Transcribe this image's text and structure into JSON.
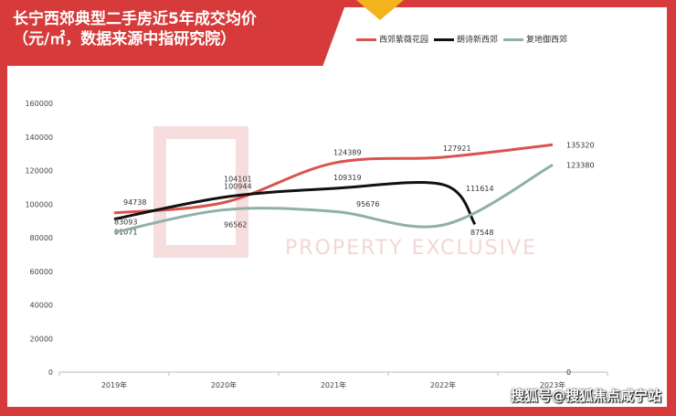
{
  "chart_data": {
    "type": "line",
    "title": [
      "长宁西郊典型二手房近5年成交均价",
      "（元/㎡，数据来源中指研究院）"
    ],
    "categories": [
      "2019年",
      "2020年",
      "2021年",
      "2022年",
      "2023年"
    ],
    "ylim": [
      0,
      160000
    ],
    "yticks": [
      0,
      20000,
      40000,
      60000,
      80000,
      100000,
      120000,
      140000,
      160000
    ],
    "legend_position": "top-right",
    "series": [
      {
        "name": "西郊紫薇花园",
        "color": "#d9534f",
        "values": [
          94738,
          100944,
          124389,
          127921,
          135320
        ]
      },
      {
        "name": "朗诗新西郊",
        "color": "#111111",
        "values": [
          91071,
          104101,
          109319,
          111614,
          0
        ]
      },
      {
        "name": "复地御西郊",
        "color": "#8fb0a8",
        "values": [
          83093,
          96562,
          95676,
          87548,
          123380
        ]
      }
    ]
  },
  "watermark": "PROPERTY EXCLUSIVE",
  "footer": "搜狐号@搜狐焦点咸宁站"
}
